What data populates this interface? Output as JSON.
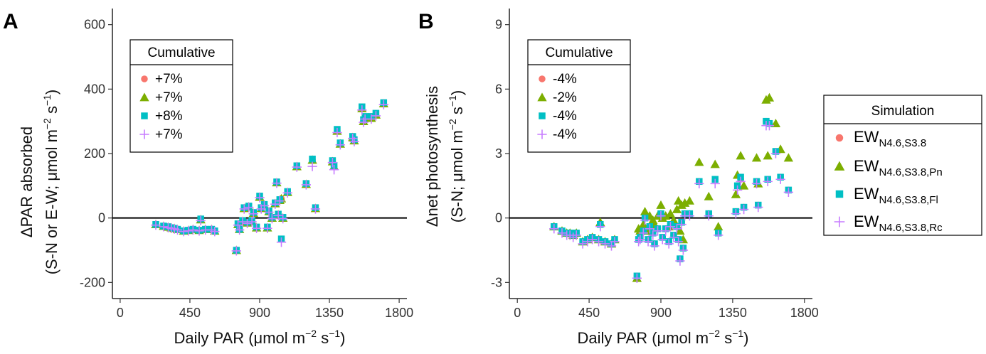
{
  "panels": [
    {
      "letter": "A",
      "ylabel_line1": "ΔPAR absorbed",
      "ylabel_line2": "(S-N or E-W; μmol  m",
      "ylabel_sup": "−2",
      "ylabel_mid": " s",
      "ylabel_sup2": "−1",
      "ylabel_end": ")",
      "legend_title": "Cumulative",
      "legend_values": [
        "+7%",
        "+7%",
        "+8%",
        "+7%"
      ]
    },
    {
      "letter": "B",
      "ylabel_line1": "Δnet photosynthesis",
      "ylabel_line2": "(S-N; μmol  m",
      "ylabel_sup": "−2",
      "ylabel_mid": " s",
      "ylabel_sup2": "−1",
      "ylabel_end": ")",
      "legend_title": "Cumulative",
      "legend_values": [
        "-4%",
        "-2%",
        "-4%",
        "-4%"
      ]
    }
  ],
  "xlabel": {
    "main": "Daily PAR (μmol  m",
    "sup": "−2",
    "mid": " s",
    "sup2": "−1",
    "end": ")"
  },
  "simulation_legend": {
    "title": "Simulation",
    "items": [
      {
        "base": "EW",
        "sub": "N4.6,S3.8",
        "color": "#F8766D",
        "shape": "circle"
      },
      {
        "base": "EW",
        "sub": "N4.6,S3.8,Pn",
        "color": "#7CAE00",
        "shape": "triangle"
      },
      {
        "base": "EW",
        "sub": "N4.6,S3.8,Fl",
        "color": "#00BFC4",
        "shape": "square"
      },
      {
        "base": "EW",
        "sub": "N4.6,S3.8,Rc",
        "color": "#C77CFF",
        "shape": "plus"
      }
    ]
  },
  "chart_data": [
    {
      "type": "scatter",
      "panel": "A",
      "xlabel": "Daily PAR (μmol m−2 s−1)",
      "ylabel": "ΔPAR absorbed (S-N or E-W; μmol m−2 s−1)",
      "xlim": [
        -50,
        1850
      ],
      "ylim": [
        -250,
        650
      ],
      "x_ticks": [
        "0",
        "450",
        "900",
        "1350",
        "1800"
      ],
      "x_tick_values": [
        0,
        450,
        900,
        1350,
        1800
      ],
      "y_ticks": [
        "600",
        "400",
        "200",
        "0",
        "-200"
      ],
      "y_tick_values": [
        600,
        400,
        200,
        0,
        -200
      ],
      "reference_line_y": 0,
      "x": [
        230,
        280,
        310,
        330,
        350,
        370,
        410,
        440,
        470,
        510,
        520,
        550,
        590,
        610,
        750,
        760,
        770,
        790,
        800,
        820,
        830,
        850,
        860,
        880,
        900,
        910,
        930,
        950,
        960,
        980,
        1000,
        1010,
        1020,
        1030,
        1040,
        1050,
        1080,
        1140,
        1200,
        1240,
        1260,
        1370,
        1380,
        1400,
        1420,
        1500,
        1510,
        1560,
        1570,
        1580,
        1620,
        1650,
        1700
      ],
      "series": [
        {
          "name": "EWN4.6,S3.8",
          "values": [
            -20,
            -25,
            -28,
            -30,
            -32,
            -35,
            -40,
            -38,
            -35,
            -38,
            -5,
            -35,
            -35,
            -40,
            -100,
            -20,
            -35,
            -10,
            30,
            -15,
            35,
            -10,
            15,
            -30,
            65,
            30,
            40,
            -30,
            20,
            0,
            45,
            110,
            10,
            55,
            60,
            0,
            80,
            160,
            105,
            180,
            30,
            175,
            160,
            270,
            230,
            250,
            240,
            340,
            300,
            310,
            310,
            320,
            355
          ]
        },
        {
          "name": "EWN4.6,S3.8,Pn",
          "values": [
            -20,
            -25,
            -28,
            -30,
            -32,
            -35,
            -40,
            -38,
            -35,
            -38,
            -5,
            -35,
            -35,
            -40,
            -100,
            -20,
            -35,
            -10,
            30,
            -15,
            35,
            -10,
            15,
            -30,
            65,
            30,
            40,
            -30,
            20,
            0,
            45,
            110,
            10,
            55,
            60,
            0,
            80,
            160,
            105,
            180,
            30,
            175,
            160,
            270,
            230,
            250,
            240,
            340,
            300,
            310,
            310,
            320,
            355
          ]
        },
        {
          "name": "EWN4.6,S3.8,Fl",
          "values": [
            -20,
            -25,
            -27,
            -30,
            -32,
            -35,
            -40,
            -38,
            -35,
            -38,
            -3,
            -35,
            -35,
            -40,
            -100,
            -18,
            -35,
            -8,
            32,
            -13,
            37,
            -8,
            17,
            -28,
            68,
            32,
            42,
            -28,
            22,
            2,
            47,
            112,
            12,
            57,
            -65,
            2,
            82,
            162,
            107,
            183,
            32,
            178,
            163,
            275,
            233,
            253,
            243,
            345,
            305,
            315,
            315,
            325,
            358
          ]
        },
        {
          "name": "EWN4.6,S3.8,Rc",
          "values": [
            -22,
            -27,
            -30,
            -32,
            -34,
            -37,
            -42,
            -40,
            -37,
            -40,
            -8,
            -37,
            -37,
            -42,
            -102,
            -22,
            -37,
            -12,
            28,
            -17,
            33,
            -12,
            13,
            -32,
            63,
            28,
            38,
            -32,
            18,
            -2,
            43,
            108,
            8,
            53,
            -75,
            -2,
            78,
            158,
            103,
            160,
            28,
            172,
            150,
            265,
            227,
            247,
            237,
            335,
            297,
            307,
            307,
            317,
            352
          ]
        }
      ]
    },
    {
      "type": "scatter",
      "panel": "B",
      "xlabel": "Daily PAR (μmol m−2 s−1)",
      "ylabel": "Δnet photosynthesis (S-N; μmol m−2 s−1)",
      "xlim": [
        -50,
        1850
      ],
      "ylim": [
        -3.75,
        9.75
      ],
      "x_ticks": [
        "0",
        "450",
        "900",
        "1350",
        "1800"
      ],
      "x_tick_values": [
        0,
        450,
        900,
        1350,
        1800
      ],
      "y_ticks": [
        "9",
        "6",
        "3",
        "0",
        "-3"
      ],
      "y_tick_values": [
        9,
        6,
        3,
        0,
        -3
      ],
      "reference_line_y": 0,
      "x": [
        230,
        280,
        310,
        330,
        350,
        370,
        410,
        440,
        470,
        510,
        520,
        550,
        590,
        610,
        750,
        760,
        770,
        790,
        800,
        820,
        830,
        850,
        860,
        880,
        900,
        910,
        930,
        950,
        960,
        980,
        1000,
        1010,
        1020,
        1030,
        1040,
        1050,
        1080,
        1140,
        1200,
        1240,
        1260,
        1370,
        1380,
        1400,
        1420,
        1500,
        1510,
        1560,
        1570,
        1580,
        1620,
        1650,
        1700
      ],
      "series": [
        {
          "name": "EWN4.6,S3.8",
          "values": [
            -0.4,
            -0.6,
            -0.7,
            -0.7,
            -0.8,
            -0.7,
            -1.1,
            -1.0,
            -0.9,
            -1.0,
            -0.3,
            -1.1,
            -1.2,
            -1.0,
            -2.7,
            -1.0,
            -0.9,
            -0.6,
            0.0,
            -1.0,
            -0.4,
            -0.7,
            -1.2,
            -0.5,
            0.2,
            -0.9,
            -0.5,
            -1.1,
            -0.3,
            -0.8,
            -0.4,
            -1.0,
            -1.9,
            -0.2,
            -1.4,
            0.2,
            0.2,
            1.7,
            0.2,
            1.8,
            -0.7,
            0.3,
            1.5,
            1.8,
            0.5,
            1.7,
            0.6,
            4.5,
            1.8,
            4.4,
            3.1,
            1.9,
            1.3
          ]
        },
        {
          "name": "EWN4.6,S3.8,Pn",
          "values": [
            -0.4,
            -0.6,
            -0.7,
            -0.7,
            -0.8,
            -0.7,
            -1.1,
            -1.0,
            -0.9,
            -1.0,
            -0.2,
            -1.1,
            -1.2,
            -1.0,
            -2.8,
            -0.5,
            -0.6,
            -0.3,
            0.3,
            -0.6,
            0.1,
            -0.1,
            -0.3,
            0.1,
            0.6,
            0.0,
            0.1,
            -0.4,
            0.2,
            -0.1,
            0.4,
            0.8,
            -0.6,
            0.6,
            -1.0,
            0.7,
            0.8,
            2.6,
            1.0,
            2.5,
            -0.4,
            1.1,
            2.0,
            2.9,
            1.5,
            2.8,
            1.6,
            5.5,
            2.9,
            5.6,
            4.4,
            3.2,
            2.8
          ]
        },
        {
          "name": "EWN4.6,S3.8,Fl",
          "values": [
            -0.4,
            -0.6,
            -0.7,
            -0.7,
            -0.8,
            -0.7,
            -1.1,
            -1.0,
            -0.9,
            -1.0,
            -0.3,
            -1.1,
            -1.2,
            -1.0,
            -2.7,
            -1.0,
            -0.9,
            -0.6,
            0.0,
            -1.0,
            -0.4,
            -0.7,
            -1.2,
            -0.5,
            0.2,
            -0.9,
            -0.5,
            -1.1,
            -0.3,
            -0.8,
            -0.4,
            -1.0,
            -1.9,
            -0.2,
            -1.4,
            0.2,
            0.2,
            1.7,
            0.2,
            1.8,
            -0.7,
            0.3,
            1.5,
            1.9,
            0.5,
            1.7,
            0.6,
            4.5,
            1.8,
            4.4,
            3.1,
            1.9,
            1.3
          ]
        },
        {
          "name": "EWN4.6,S3.8,Rc",
          "values": [
            -0.5,
            -0.7,
            -0.8,
            -0.8,
            -0.9,
            -0.8,
            -1.2,
            -1.1,
            -1.0,
            -1.1,
            -0.4,
            -1.2,
            -1.3,
            -1.1,
            -2.8,
            -1.1,
            -1.0,
            -0.7,
            -0.1,
            -1.1,
            -0.5,
            -0.8,
            -1.3,
            -0.6,
            0.1,
            -1.0,
            -0.6,
            -1.2,
            -0.4,
            -0.9,
            -0.5,
            -1.1,
            -2.0,
            -0.3,
            -1.5,
            0.1,
            0.1,
            1.6,
            0.1,
            1.6,
            -0.8,
            0.2,
            1.3,
            1.7,
            0.4,
            1.6,
            0.5,
            4.3,
            1.7,
            4.3,
            3.0,
            1.8,
            1.2
          ]
        }
      ]
    }
  ]
}
